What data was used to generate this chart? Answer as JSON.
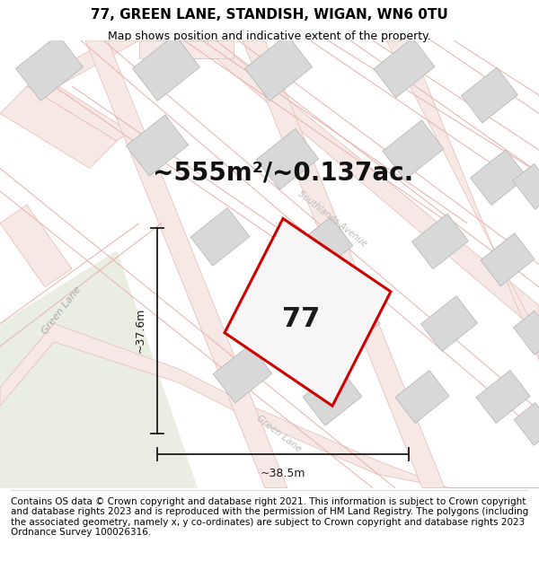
{
  "title": "77, GREEN LANE, STANDISH, WIGAN, WN6 0TU",
  "subtitle": "Map shows position and indicative extent of the property.",
  "area_label": "~555m²/~0.137ac.",
  "plot_number": "77",
  "width_label": "~38.5m",
  "height_label": "~37.6m",
  "copyright_text": "Contains OS data © Crown copyright and database right 2021. This information is subject to Crown copyright and database rights 2023 and is reproduced with the permission of HM Land Registry. The polygons (including the associated geometry, namely x, y co-ordinates) are subject to Crown copyright and database rights 2023 Ordnance Survey 100026316.",
  "map_bg": "#f7f7f5",
  "road_fill": "#f5e8e5",
  "road_edge": "#e8b8b0",
  "building_fill": "#d8d8d8",
  "building_edge": "#b8b8b8",
  "green_fill": "#eaede2",
  "plot_edge": "#cc0000",
  "plot_fill": "#f7f5f5",
  "dim_color": "#1a1a1a",
  "label_color": "#aaaaaa",
  "title_fontsize": 11,
  "subtitle_fontsize": 9,
  "area_fontsize": 20,
  "plot_num_fontsize": 22,
  "dim_fontsize": 9,
  "road_label_fontsize": 8,
  "copyright_fontsize": 7.5,
  "road_lw": 0.5,
  "plot_lw": 2.2,
  "dim_lw": 1.3
}
